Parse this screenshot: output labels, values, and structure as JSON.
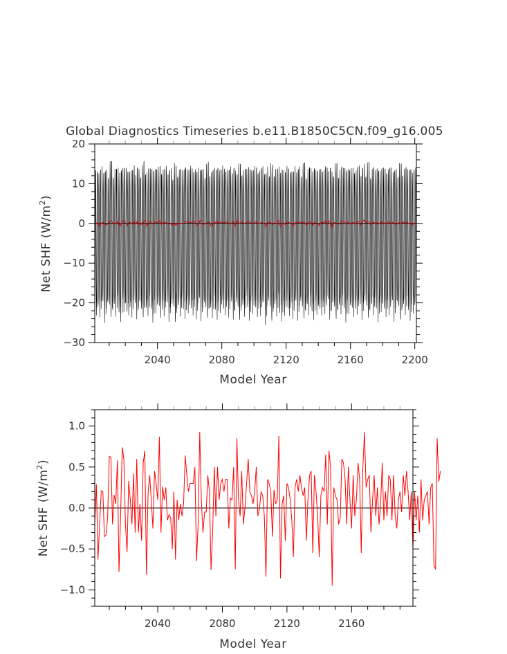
{
  "figure": {
    "title": "Global Diagnostics Timeseries b.e11.B1850C5CN.f09_g16.005"
  },
  "chart_data": [
    {
      "type": "line",
      "title": "Global Diagnostics Timeseries b.e11.B1850C5CN.f09_g16.005",
      "xlabel": "Model Year",
      "ylabel_main": "Net SHF (W/m",
      "ylabel_sup": "2",
      "ylabel_close": ")",
      "xlim": [
        2001,
        2201
      ],
      "ylim": [
        -30,
        20
      ],
      "xticks": [
        2040,
        2080,
        2120,
        2160,
        2200
      ],
      "xtick_labels": [
        "2040",
        "2080",
        "2120",
        "2160",
        "2200"
      ],
      "yticks": [
        -30,
        -20,
        -10,
        0,
        10,
        20
      ],
      "ytick_labels": [
        "−30",
        "−20",
        "−10",
        "0",
        "10",
        "20"
      ],
      "zero_line": true,
      "series": [
        {
          "color": "#000000",
          "kind": "monthly",
          "pattern": "seasonal cycle approx. -22 to +13 W/m2",
          "monthly_climatology": [
            -19,
            -21,
            -17,
            -6,
            5,
            11,
            13,
            12,
            7,
            -3,
            -13,
            -19
          ],
          "annual_amplitude_noise": [
            0.05,
            0.1,
            -0.05,
            0.15,
            0.0,
            -0.1,
            0.2,
            0.05,
            -0.15,
            0.1,
            0.25,
            -0.05,
            0.0,
            0.15,
            -0.1,
            0.05,
            0.2,
            -0.05,
            0.1,
            0.0
          ]
        },
        {
          "color": "#cc0000",
          "kind": "annual",
          "source": "annual_means"
        }
      ]
    },
    {
      "type": "line",
      "xlabel": "Model Year",
      "ylabel_main": "Net SHF (W/m",
      "ylabel_sup": "2",
      "ylabel_close": ")",
      "xlim": [
        2001,
        2198
      ],
      "ylim": [
        -1.2,
        1.2
      ],
      "xticks": [
        2040,
        2080,
        2120,
        2160
      ],
      "xtick_labels": [
        "2040",
        "2080",
        "2120",
        "2160"
      ],
      "yticks": [
        -1.0,
        -0.5,
        0.0,
        0.5,
        1.0
      ],
      "ytick_labels": [
        "−1.0",
        "−0.5",
        "0.0",
        "0.5",
        "1.0"
      ],
      "zero_line": true,
      "series": [
        {
          "color": "#ff0000",
          "kind": "annual",
          "x_start": 2001,
          "values": [
            -0.2,
            0.29,
            -0.63,
            -0.2,
            0.21,
            0.2,
            -0.35,
            -0.33,
            -0.1,
            0.63,
            0.62,
            -0.2,
            0.16,
            0.05,
            0.58,
            -0.78,
            -0.1,
            0.74,
            0.6,
            -0.2,
            -0.54,
            0.33,
            0.1,
            -0.2,
            0.42,
            -0.3,
            0.6,
            -0.3,
            0.05,
            -0.4,
            0.55,
            0.7,
            -0.82,
            0.18,
            0.4,
            0.1,
            -0.25,
            0.45,
            0.3,
            0.1,
            0.87,
            -0.3,
            0.26,
            0.1,
            0.25,
            -0.15,
            -0.08,
            -0.12,
            -0.5,
            0.2,
            -0.63,
            0.1,
            -0.15,
            0.05,
            -0.1,
            0.05,
            0.64,
            0.4,
            0.2,
            0.3,
            0.3,
            0.3,
            0.5,
            -0.65,
            -0.2,
            0.93,
            0.1,
            -0.3,
            -0.05,
            -0.05,
            0.4,
            0.2,
            -0.76,
            -0.3,
            0.5,
            -0.1,
            0.5,
            0.1,
            0.3,
            0.35,
            0.2,
            0.35,
            0.35,
            -0.25,
            0.12,
            0.1,
            0.5,
            -0.75,
            0.85,
            0.1,
            -0.1,
            0.45,
            -0.2,
            0.0,
            0.3,
            0.6,
            0.2,
            0.15,
            0.05,
            0.2,
            0.5,
            -0.1,
            0.0,
            0.2,
            0.15,
            -0.1,
            -0.84,
            0.35,
            0.3,
            0.2,
            -0.35,
            0.22,
            0.05,
            0.1,
            0.88,
            -0.86,
            0.05,
            0.15,
            -0.4,
            0.3,
            0.25,
            0.1,
            -0.15,
            -0.6,
            0.25,
            0.35,
            0.2,
            0.4,
            0.25,
            0.15,
            0.25,
            -0.4,
            0.1,
            0.4,
            0.45,
            -0.55,
            0.4,
            0.2,
            -0.1,
            -0.6,
            0.15,
            0.25,
            0.2,
            0.65,
            -0.2,
            0.7,
            0.5,
            -0.95,
            0.25,
            0.15,
            0.1,
            -0.2,
            -0.12,
            0.6,
            0.55,
            0.35,
            -0.2,
            0.5,
            0.1,
            -0.25,
            0.4,
            -0.1,
            0.1,
            0.55,
            0.35,
            -0.55,
            0.5,
            0.93,
            0.25,
            0.35,
            0.4,
            -0.3,
            0.1,
            0.4,
            -0.1,
            0.25,
            -0.2,
            0.05,
            0.55,
            -0.15,
            0.2,
            -0.1,
            0.4,
            0.35,
            -0.15,
            0.4,
            -0.1,
            -0.25,
            0.1,
            0.2,
            -0.05,
            0.4,
            0.15,
            0.45,
            0.2,
            -0.15,
            0.2,
            -0.5,
            0.2,
            -0.15,
            0.15,
            -0.3,
            0.35,
            -0.15,
            0.1,
            0.15,
            0.2,
            -0.2,
            0.25,
            0.3,
            -0.7,
            -0.75,
            0.85,
            0.32,
            0.45
          ]
        }
      ]
    }
  ]
}
